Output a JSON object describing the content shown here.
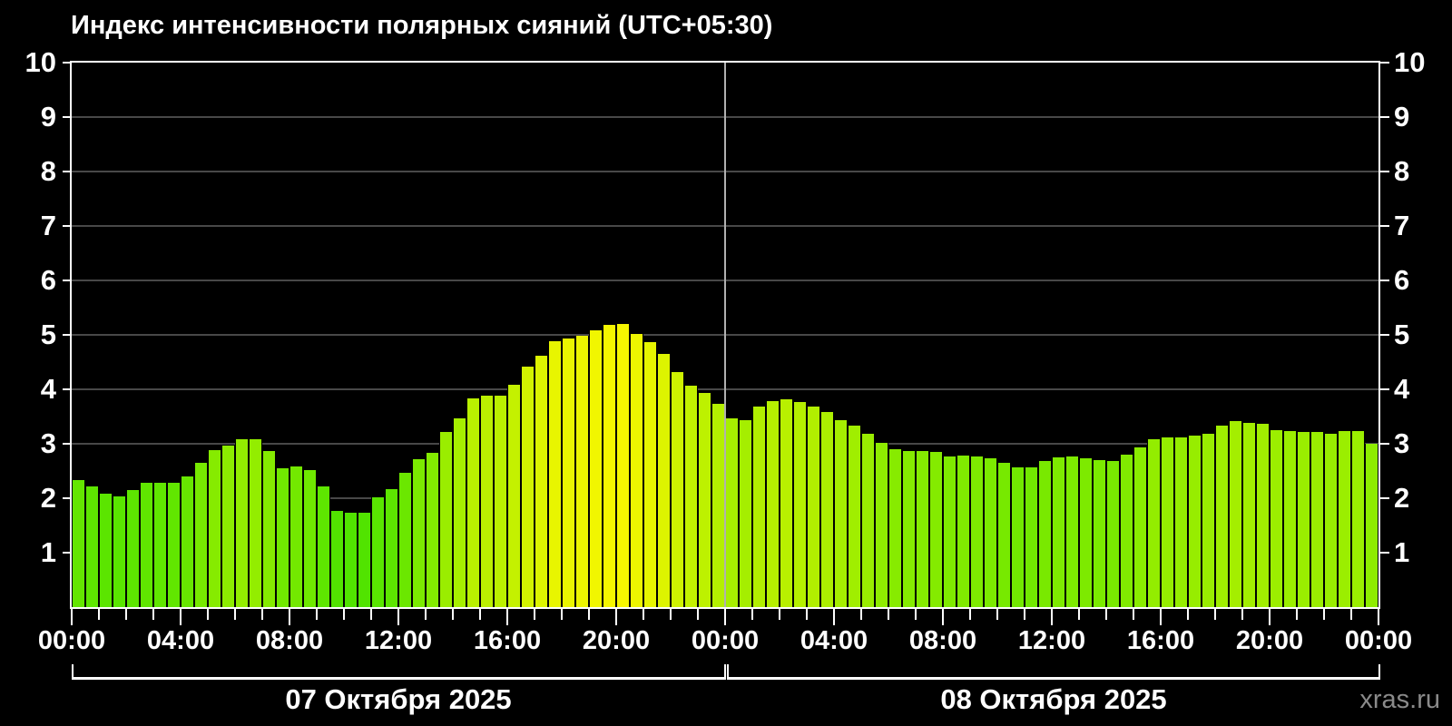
{
  "title": "Индекс интенсивности полярных сияний (UTC+05:30)",
  "watermark": "xras.ru",
  "colors": {
    "background": "#000000",
    "axis": "#ffffff",
    "grid": "#484848",
    "day_divider": "#b0b0b0",
    "text": "#ffffff",
    "watermark": "#8a8a8a",
    "bar_outline": "#000000",
    "bar_scale_stops": [
      {
        "value": 0.0,
        "color": "#1ed300"
      },
      {
        "value": 1.7,
        "color": "#50e300"
      },
      {
        "value": 2.3,
        "color": "#61e600"
      },
      {
        "value": 3.1,
        "color": "#94ed00"
      },
      {
        "value": 3.8,
        "color": "#b7f000"
      },
      {
        "value": 5.2,
        "color": "#f6f600"
      }
    ]
  },
  "chart_data": {
    "type": "bar",
    "title": "Индекс интенсивности полярных сияний (UTC+05:30)",
    "xlabel": "",
    "ylabel": "",
    "ylim": [
      0,
      10
    ],
    "y_ticks": [
      1,
      2,
      3,
      4,
      5,
      6,
      7,
      8,
      9,
      10
    ],
    "grid": "horizontal",
    "bar_interval_minutes": 30,
    "x_minor_tick_hours": 1,
    "x_major_tick_hours": 4,
    "x_major_tick_labels": [
      "00:00",
      "04:00",
      "08:00",
      "12:00",
      "16:00",
      "20:00",
      "00:00",
      "04:00",
      "08:00",
      "12:00",
      "16:00",
      "20:00",
      "00:00"
    ],
    "days": [
      {
        "label": "07 Октября 2025",
        "values": [
          2.34,
          2.21,
          2.09,
          2.03,
          2.15,
          2.28,
          2.28,
          2.29,
          2.4,
          2.65,
          2.88,
          2.97,
          3.09,
          3.09,
          2.86,
          2.55,
          2.58,
          2.52,
          2.21,
          1.76,
          1.74,
          1.74,
          2.01,
          2.17,
          2.46,
          2.71,
          2.84,
          3.21,
          3.46,
          3.84,
          3.88,
          3.88,
          4.08,
          4.42,
          4.62,
          4.89,
          4.94,
          4.98,
          5.09,
          5.18,
          5.2,
          5.01,
          4.86,
          4.65,
          4.31,
          4.07,
          3.94,
          3.74
        ]
      },
      {
        "label": "08 Октября 2025",
        "values": [
          3.47,
          3.43,
          3.68,
          3.78,
          3.82,
          3.76,
          3.68,
          3.58,
          3.43,
          3.33,
          3.19,
          3.02,
          2.9,
          2.87,
          2.86,
          2.85,
          2.77,
          2.78,
          2.76,
          2.73,
          2.65,
          2.57,
          2.56,
          2.68,
          2.75,
          2.76,
          2.74,
          2.7,
          2.68,
          2.8,
          2.94,
          3.08,
          3.11,
          3.12,
          3.15,
          3.19,
          3.33,
          3.41,
          3.38,
          3.36,
          3.25,
          3.23,
          3.22,
          3.22,
          3.19,
          3.23,
          3.23,
          3.0
        ]
      }
    ]
  }
}
